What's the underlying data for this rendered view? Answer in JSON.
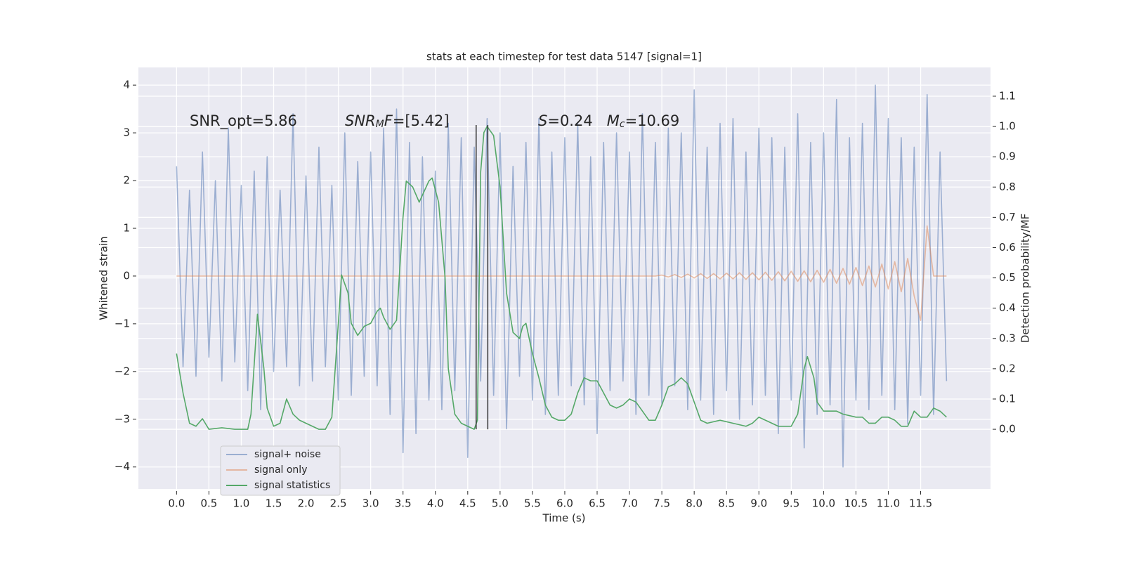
{
  "chart_data": {
    "type": "line",
    "title": "stats at each timestep for test data 5147 [signal=1]",
    "xlabel": "Time (s)",
    "ylabel": "Whitened strain",
    "y2label": "Detection probability/MF",
    "grid": true,
    "legend": "lower left",
    "xlim": [
      -0.59,
      12.58
    ],
    "ylim": [
      -4.46,
      4.37
    ],
    "y2lim": [
      -0.197,
      1.195
    ],
    "xticks": [
      {
        "value": 0,
        "label": "0.0"
      },
      {
        "value": 0.5,
        "label": "0.5"
      },
      {
        "value": 1,
        "label": "1.0"
      },
      {
        "value": 1.5,
        "label": "1.5"
      },
      {
        "value": 2,
        "label": "2.0"
      },
      {
        "value": 2.5,
        "label": "2.5"
      },
      {
        "value": 3,
        "label": "3.0"
      },
      {
        "value": 3.5,
        "label": "3.5"
      },
      {
        "value": 4,
        "label": "4.0"
      },
      {
        "value": 4.5,
        "label": "4.5"
      },
      {
        "value": 5,
        "label": "5.0"
      },
      {
        "value": 5.5,
        "label": "5.5"
      },
      {
        "value": 6,
        "label": "6.0"
      },
      {
        "value": 6.5,
        "label": "6.5"
      },
      {
        "value": 7,
        "label": "7.0"
      },
      {
        "value": 7.5,
        "label": "7.5"
      },
      {
        "value": 8,
        "label": "8.0"
      },
      {
        "value": 8.5,
        "label": "8.5"
      },
      {
        "value": 9,
        "label": "9.0"
      },
      {
        "value": 9.5,
        "label": "9.5"
      },
      {
        "value": 10,
        "label": "10.0"
      },
      {
        "value": 10.5,
        "label": "10.5"
      },
      {
        "value": 11,
        "label": "11.0"
      },
      {
        "value": 11.5,
        "label": "11.5"
      }
    ],
    "yticks": [
      {
        "value": -4,
        "label": "−4"
      },
      {
        "value": -3,
        "label": "−3"
      },
      {
        "value": -2,
        "label": "−2"
      },
      {
        "value": -1,
        "label": "−1"
      },
      0,
      1,
      2,
      3,
      4
    ],
    "y2ticks": [
      {
        "value": 0,
        "label": "0.0"
      },
      {
        "value": 0.1,
        "label": "0.1"
      },
      {
        "value": 0.2,
        "label": "0.2"
      },
      {
        "value": 0.3,
        "label": "0.3"
      },
      {
        "value": 0.4,
        "label": "0.4"
      },
      {
        "value": 0.5,
        "label": "0.5"
      },
      {
        "value": 0.6,
        "label": "0.6"
      },
      {
        "value": 0.7,
        "label": "0.7"
      },
      {
        "value": 0.8,
        "label": "0.8"
      },
      {
        "value": 0.9,
        "label": "0.9"
      },
      {
        "value": 1,
        "label": "1.0"
      },
      {
        "value": 1.1,
        "label": "1.1"
      }
    ],
    "annotations": [
      {
        "segments": [
          {
            "text": "SNR_opt=5.86"
          }
        ]
      },
      {
        "segments": [
          {
            "text": "SNR",
            "italic": true
          },
          {
            "text": "M",
            "italic": true,
            "sub": true
          },
          {
            "text": "F",
            "italic": true
          },
          {
            "text": "=[5.42]"
          }
        ]
      },
      {
        "segments": [
          {
            "text": "S",
            "italic": true
          },
          {
            "text": "=0.24   "
          },
          {
            "text": "M",
            "italic": true
          },
          {
            "text": "c",
            "italic": true,
            "sub": true
          },
          {
            "text": "=10.69"
          }
        ]
      }
    ],
    "vlines": [
      4.63,
      4.81
    ],
    "vline_color": "#333333",
    "x": [
      0,
      0.1,
      0.2,
      0.3,
      0.4,
      0.5,
      0.6,
      0.7,
      0.8,
      0.9,
      1,
      1.1,
      1.2,
      1.3,
      1.4,
      1.5,
      1.6,
      1.7,
      1.8,
      1.9,
      2,
      2.1,
      2.2,
      2.3,
      2.4,
      2.5,
      2.6,
      2.7,
      2.8,
      2.9,
      3,
      3.1,
      3.2,
      3.3,
      3.4,
      3.5,
      3.6,
      3.7,
      3.8,
      3.9,
      4,
      4.1,
      4.2,
      4.3,
      4.4,
      4.5,
      4.6,
      4.7,
      4.8,
      4.9,
      5,
      5.1,
      5.2,
      5.3,
      5.4,
      5.5,
      5.6,
      5.7,
      5.8,
      5.9,
      6,
      6.1,
      6.2,
      6.3,
      6.4,
      6.5,
      6.6,
      6.7,
      6.8,
      6.9,
      7,
      7.1,
      7.2,
      7.3,
      7.4,
      7.5,
      7.6,
      7.7,
      7.8,
      7.9,
      8,
      8.1,
      8.2,
      8.3,
      8.4,
      8.5,
      8.6,
      8.7,
      8.8,
      8.9,
      9,
      9.1,
      9.2,
      9.3,
      9.4,
      9.5,
      9.6,
      9.7,
      9.8,
      9.9,
      10,
      10.1,
      10.2,
      10.3,
      10.4,
      10.5,
      10.6,
      10.7,
      10.8,
      10.9,
      11,
      11.1,
      11.2,
      11.3,
      11.4,
      11.5,
      11.6,
      11.7,
      11.8,
      11.9
    ],
    "series": [
      {
        "name": "signal+ noise",
        "color": "#4c72b0",
        "alpha": 0.5,
        "values": [
          2.3,
          -1.9,
          1.8,
          -2.1,
          2.6,
          -1.7,
          2.0,
          -2.2,
          3.1,
          -1.8,
          1.9,
          -2.4,
          2.2,
          -2.8,
          2.5,
          -2.0,
          1.8,
          -1.9,
          3.4,
          -2.3,
          2.1,
          -2.2,
          2.7,
          -1.9,
          1.9,
          -2.6,
          3.0,
          -2.5,
          2.4,
          -2.1,
          2.6,
          -2.3,
          3.1,
          -2.9,
          3.5,
          -3.7,
          2.8,
          -3.3,
          2.5,
          -2.6,
          2.2,
          -2.8,
          3.2,
          -2.4,
          2.9,
          -3.8,
          2.7,
          -2.2,
          3.3,
          -2.5,
          3.0,
          -3.2,
          2.3,
          -2.1,
          2.8,
          -2.6,
          3.3,
          -2.9,
          2.6,
          -2.5,
          2.9,
          -2.3,
          3.2,
          -2.7,
          2.5,
          -3.3,
          2.8,
          -2.4,
          3.0,
          -2.2,
          2.6,
          -2.9,
          3.4,
          -2.5,
          2.8,
          -2.7,
          3.1,
          -2.3,
          3.0,
          -2.8,
          3.9,
          -2.6,
          2.7,
          -2.9,
          3.2,
          -2.4,
          3.3,
          -3.0,
          2.6,
          -2.7,
          3.1,
          -2.5,
          2.9,
          -3.3,
          2.7,
          -2.6,
          3.4,
          -3.6,
          2.8,
          -2.9,
          3.0,
          -2.7,
          3.7,
          -4.0,
          2.9,
          -2.6,
          3.2,
          -2.8,
          4.0,
          -2.5,
          3.3,
          -2.8,
          2.9,
          -3.1,
          2.7,
          -2.5,
          3.8,
          -2.9,
          2.6,
          -2.2
        ]
      },
      {
        "name": "signal only",
        "color": "#dd8452",
        "alpha": 0.5,
        "values": [
          0,
          0,
          0,
          0,
          0,
          0,
          0,
          0,
          0,
          0,
          0,
          0,
          0,
          0,
          0,
          0,
          0,
          0,
          0,
          0,
          0,
          0,
          0,
          0,
          0,
          0,
          0,
          0,
          0,
          0,
          0,
          0,
          0,
          0,
          0,
          0,
          0,
          0,
          0,
          0,
          0,
          0,
          0,
          0,
          0,
          0,
          0,
          0,
          0,
          0,
          0,
          0,
          0,
          0,
          0,
          0,
          0,
          0,
          0,
          0,
          0,
          0,
          0,
          0,
          0,
          0,
          0,
          0,
          0,
          0,
          0,
          0,
          0,
          0,
          0,
          0.02,
          -0.02,
          0.03,
          -0.03,
          0.04,
          -0.04,
          0.05,
          -0.05,
          0.05,
          -0.06,
          0.06,
          -0.06,
          0.07,
          -0.07,
          0.07,
          -0.08,
          0.08,
          -0.09,
          0.09,
          -0.1,
          0.1,
          -0.11,
          0.11,
          -0.12,
          0.12,
          -0.13,
          0.14,
          -0.15,
          0.16,
          -0.17,
          0.18,
          -0.2,
          0.21,
          -0.23,
          0.25,
          -0.27,
          0.3,
          -0.33,
          0.37,
          -0.42,
          -0.93,
          1.05,
          0,
          0,
          0
        ]
      },
      {
        "name": "signal statistics",
        "color": "#55a868",
        "axis": "y2",
        "x": [
          0,
          0.1,
          0.2,
          0.3,
          0.4,
          0.5,
          0.7,
          0.9,
          1.1,
          1.15,
          1.25,
          1.35,
          1.4,
          1.5,
          1.6,
          1.7,
          1.8,
          1.9,
          2,
          2.2,
          2.3,
          2.4,
          2.5,
          2.55,
          2.65,
          2.7,
          2.8,
          2.9,
          3,
          3.1,
          3.15,
          3.2,
          3.3,
          3.4,
          3.5,
          3.55,
          3.65,
          3.75,
          3.9,
          3.95,
          4.05,
          4.15,
          4.2,
          4.3,
          4.4,
          4.6,
          4.65,
          4.7,
          4.75,
          4.8,
          4.9,
          5,
          5.1,
          5.2,
          5.3,
          5.35,
          5.4,
          5.5,
          5.6,
          5.7,
          5.8,
          5.9,
          6,
          6.1,
          6.2,
          6.3,
          6.4,
          6.5,
          6.6,
          6.7,
          6.8,
          6.9,
          7,
          7.1,
          7.2,
          7.3,
          7.4,
          7.5,
          7.6,
          7.7,
          7.8,
          7.9,
          8,
          8.1,
          8.2,
          8.4,
          8.6,
          8.8,
          8.9,
          9,
          9.1,
          9.3,
          9.5,
          9.6,
          9.7,
          9.75,
          9.85,
          9.9,
          10,
          10.2,
          10.3,
          10.5,
          10.6,
          10.7,
          10.8,
          10.9,
          11,
          11.1,
          11.2,
          11.3,
          11.4,
          11.5,
          11.6,
          11.7,
          11.8,
          11.9
        ],
        "values": [
          0.25,
          0.12,
          0.02,
          0.01,
          0.035,
          0,
          0.005,
          0,
          0,
          0.05,
          0.38,
          0.2,
          0.07,
          0.01,
          0.02,
          0.1,
          0.05,
          0.03,
          0.02,
          0,
          0,
          0.04,
          0.35,
          0.51,
          0.45,
          0.35,
          0.31,
          0.34,
          0.35,
          0.39,
          0.4,
          0.37,
          0.33,
          0.36,
          0.7,
          0.82,
          0.8,
          0.75,
          0.82,
          0.83,
          0.75,
          0.5,
          0.2,
          0.05,
          0.02,
          0,
          0.03,
          0.85,
          0.98,
          1.0,
          0.97,
          0.8,
          0.45,
          0.32,
          0.3,
          0.34,
          0.35,
          0.25,
          0.17,
          0.08,
          0.04,
          0.03,
          0.03,
          0.05,
          0.12,
          0.17,
          0.16,
          0.16,
          0.12,
          0.08,
          0.07,
          0.08,
          0.1,
          0.09,
          0.06,
          0.03,
          0.03,
          0.08,
          0.14,
          0.15,
          0.17,
          0.15,
          0.09,
          0.03,
          0.02,
          0.03,
          0.02,
          0.01,
          0.02,
          0.04,
          0.03,
          0.01,
          0.01,
          0.05,
          0.2,
          0.24,
          0.17,
          0.09,
          0.06,
          0.06,
          0.05,
          0.04,
          0.04,
          0.02,
          0.02,
          0.04,
          0.04,
          0.03,
          0.01,
          0.01,
          0.06,
          0.04,
          0.04,
          0.07,
          0.06,
          0.04
        ]
      }
    ]
  }
}
